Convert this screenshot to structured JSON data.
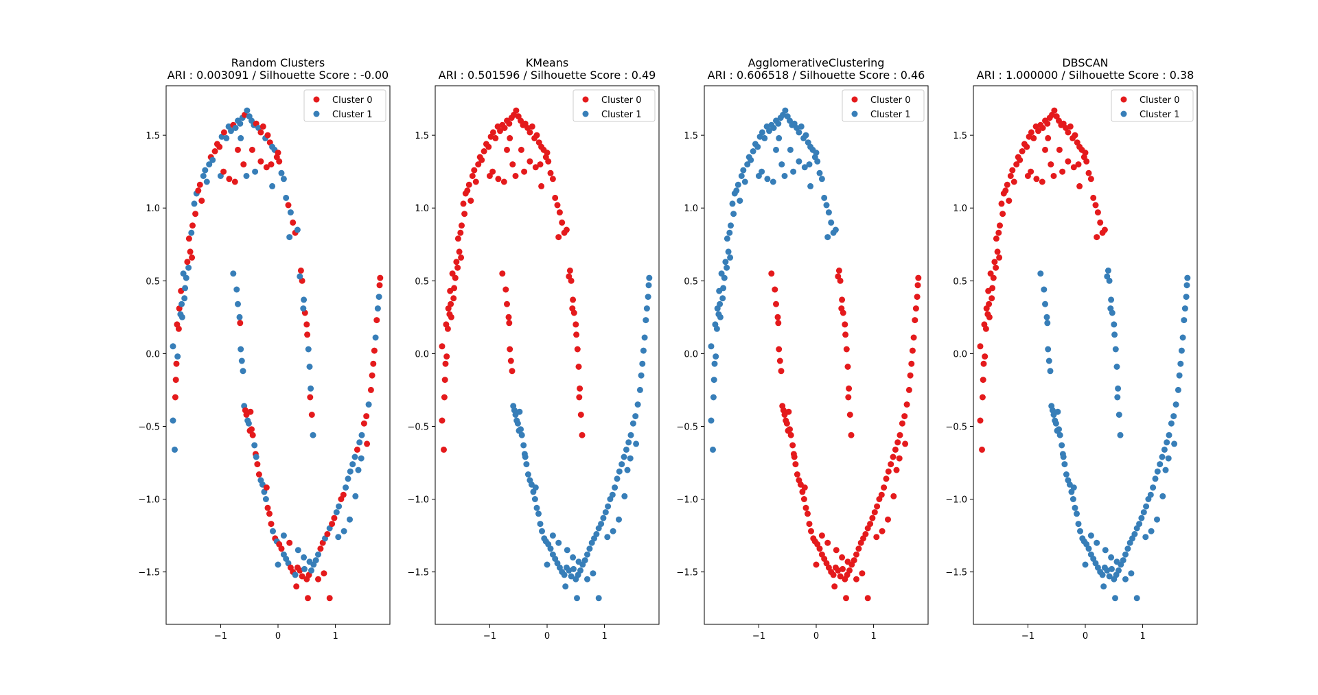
{
  "colors": {
    "cluster_0": "#e41a1c",
    "cluster_1": "#377eb8"
  },
  "chart_data": [
    {
      "type": "scatter",
      "title_line1": "Random Clusters",
      "title_line2": "ARI : 0.003091 / Silhouette Score : -0.00",
      "xlim": [
        -1.95,
        1.95
      ],
      "ylim": [
        -1.86,
        1.84
      ],
      "xticks": [
        -1,
        0,
        1
      ],
      "yticks": [
        -1.5,
        -1.0,
        -0.5,
        0.0,
        0.5,
        1.0,
        1.5
      ],
      "legend": {
        "position": "top-right",
        "entries": [
          "Cluster 0",
          "Cluster 1"
        ]
      },
      "color_rule": "random",
      "seed": 11
    },
    {
      "type": "scatter",
      "title_line1": "KMeans",
      "title_line2": "ARI : 0.501596 / Silhouette Score : 0.49",
      "xlim": [
        -1.95,
        1.95
      ],
      "ylim": [
        -1.86,
        1.84
      ],
      "xticks": [
        -1,
        0,
        1
      ],
      "yticks": [
        -1.5,
        -1.0,
        -0.5,
        0.0,
        0.5,
        1.0,
        1.5
      ],
      "legend": {
        "position": "top-right",
        "entries": [
          "Cluster 0",
          "Cluster 1"
        ]
      },
      "color_rule": "kmeans"
    },
    {
      "type": "scatter",
      "title_line1": "AgglomerativeClustering",
      "title_line2": "ARI : 0.606518 / Silhouette Score : 0.46",
      "xlim": [
        -1.95,
        1.95
      ],
      "ylim": [
        -1.86,
        1.84
      ],
      "xticks": [
        -1,
        0,
        1
      ],
      "yticks": [
        -1.5,
        -1.0,
        -0.5,
        0.0,
        0.5,
        1.0,
        1.5
      ],
      "legend": {
        "position": "top-right",
        "entries": [
          "Cluster 0",
          "Cluster 1"
        ]
      },
      "color_rule": "agglomerative"
    },
    {
      "type": "scatter",
      "title_line1": "DBSCAN",
      "title_line2": "ARI : 1.000000 / Silhouette Score : 0.38",
      "xlim": [
        -1.95,
        1.95
      ],
      "ylim": [
        -1.86,
        1.84
      ],
      "xticks": [
        -1,
        0,
        1
      ],
      "yticks": [
        -1.5,
        -1.0,
        -0.5,
        0.0,
        0.5,
        1.0,
        1.5
      ],
      "legend": {
        "position": "top-right",
        "entries": [
          "Cluster 0",
          "Cluster 1"
        ]
      },
      "color_rule": "dbscan"
    }
  ],
  "moon_points": [
    [
      -1.83,
      -0.46
    ],
    [
      -1.8,
      -0.66
    ],
    [
      -1.79,
      -0.3
    ],
    [
      -1.78,
      -0.18
    ],
    [
      -1.77,
      -0.07
    ],
    [
      -1.75,
      -0.02
    ],
    [
      -1.73,
      0.17
    ],
    [
      -1.72,
      0.31
    ],
    [
      -1.7,
      0.27
    ],
    [
      -1.69,
      0.43
    ],
    [
      -1.67,
      0.25
    ],
    [
      -1.65,
      0.55
    ],
    [
      -1.63,
      0.38
    ],
    [
      -1.6,
      0.52
    ],
    [
      -1.58,
      0.63
    ],
    [
      -1.55,
      0.79
    ],
    [
      -1.53,
      0.7
    ],
    [
      -1.51,
      0.83
    ],
    [
      -1.49,
      0.88
    ],
    [
      -1.46,
      1.03
    ],
    [
      -1.44,
      0.96
    ],
    [
      -1.42,
      1.1
    ],
    [
      -1.39,
      1.12
    ],
    [
      -1.36,
      1.16
    ],
    [
      -1.33,
      1.05
    ],
    [
      -1.3,
      1.22
    ],
    [
      -1.27,
      1.26
    ],
    [
      -1.24,
      1.18
    ],
    [
      -1.2,
      1.3
    ],
    [
      -1.17,
      1.35
    ],
    [
      -1.14,
      1.33
    ],
    [
      -1.1,
      1.39
    ],
    [
      -1.06,
      1.44
    ],
    [
      -1.02,
      1.42
    ],
    [
      -0.98,
      1.49
    ],
    [
      -0.94,
      1.52
    ],
    [
      -0.9,
      1.48
    ],
    [
      -0.86,
      1.56
    ],
    [
      -0.82,
      1.53
    ],
    [
      -0.78,
      1.57
    ],
    [
      -0.74,
      1.55
    ],
    [
      -0.7,
      1.6
    ],
    [
      -0.66,
      1.58
    ],
    [
      -0.62,
      1.62
    ],
    [
      -0.58,
      1.64
    ],
    [
      -0.54,
      1.67
    ],
    [
      -0.5,
      1.63
    ],
    [
      -0.46,
      1.6
    ],
    [
      -0.42,
      1.57
    ],
    [
      -0.38,
      1.58
    ],
    [
      -0.34,
      1.55
    ],
    [
      -0.3,
      1.52
    ],
    [
      -0.26,
      1.56
    ],
    [
      -0.22,
      1.48
    ],
    [
      -0.18,
      1.5
    ],
    [
      -0.14,
      1.45
    ],
    [
      -0.1,
      1.42
    ],
    [
      -0.06,
      1.4
    ],
    [
      -0.02,
      1.35
    ],
    [
      0.02,
      1.32
    ],
    [
      0.06,
      1.24
    ],
    [
      0.1,
      1.2
    ],
    [
      0.14,
      1.07
    ],
    [
      0.18,
      1.02
    ],
    [
      0.22,
      0.97
    ],
    [
      0.26,
      0.9
    ],
    [
      0.3,
      0.83
    ],
    [
      0.34,
      0.85
    ],
    [
      -0.85,
      1.2
    ],
    [
      -0.75,
      1.18
    ],
    [
      -0.6,
      1.3
    ],
    [
      -0.55,
      1.22
    ],
    [
      -0.4,
      1.25
    ],
    [
      -0.3,
      1.32
    ],
    [
      -0.2,
      1.28
    ],
    [
      -0.12,
      1.3
    ],
    [
      -0.1,
      1.15
    ],
    [
      0.0,
      1.38
    ],
    [
      0.2,
      0.8
    ],
    [
      -1.0,
      1.22
    ],
    [
      -0.95,
      1.25
    ],
    [
      -0.45,
      1.4
    ],
    [
      -0.65,
      1.48
    ],
    [
      -0.7,
      1.4
    ],
    [
      -1.83,
      0.05
    ],
    [
      -1.76,
      0.2
    ],
    [
      -1.68,
      0.34
    ],
    [
      -1.62,
      0.45
    ],
    [
      -1.56,
      0.59
    ],
    [
      -1.5,
      0.66
    ],
    [
      -0.78,
      0.55
    ],
    [
      -0.72,
      0.44
    ],
    [
      -0.7,
      0.34
    ],
    [
      -0.67,
      0.25
    ],
    [
      -0.66,
      0.21
    ],
    [
      -0.65,
      0.03
    ],
    [
      -0.63,
      -0.05
    ],
    [
      -0.61,
      -0.12
    ],
    [
      -0.59,
      -0.36
    ],
    [
      -0.57,
      -0.39
    ],
    [
      -0.55,
      -0.42
    ],
    [
      -0.53,
      -0.46
    ],
    [
      -0.51,
      -0.48
    ],
    [
      -0.49,
      -0.53
    ],
    [
      -0.46,
      -0.52
    ],
    [
      -0.44,
      -0.56
    ],
    [
      -0.41,
      -0.63
    ],
    [
      -0.39,
      -0.69
    ],
    [
      -0.36,
      -0.76
    ],
    [
      -0.33,
      -0.83
    ],
    [
      -0.3,
      -0.87
    ],
    [
      -0.27,
      -0.9
    ],
    [
      -0.24,
      -0.95
    ],
    [
      -0.21,
      -1.0
    ],
    [
      -0.18,
      -1.06
    ],
    [
      -0.15,
      -1.1
    ],
    [
      -0.12,
      -1.17
    ],
    [
      -0.09,
      -1.22
    ],
    [
      -0.05,
      -1.27
    ],
    [
      -0.02,
      -1.29
    ],
    [
      0.02,
      -1.31
    ],
    [
      0.06,
      -1.34
    ],
    [
      0.1,
      -1.38
    ],
    [
      0.14,
      -1.41
    ],
    [
      0.18,
      -1.44
    ],
    [
      0.22,
      -1.47
    ],
    [
      0.26,
      -1.5
    ],
    [
      0.3,
      -1.52
    ],
    [
      0.34,
      -1.47
    ],
    [
      0.38,
      -1.49
    ],
    [
      0.42,
      -1.53
    ],
    [
      0.46,
      -1.48
    ],
    [
      0.5,
      -1.55
    ],
    [
      0.54,
      -1.52
    ],
    [
      0.58,
      -1.49
    ],
    [
      0.62,
      -1.45
    ],
    [
      0.66,
      -1.42
    ],
    [
      0.7,
      -1.38
    ],
    [
      0.74,
      -1.34
    ],
    [
      0.78,
      -1.3
    ],
    [
      0.82,
      -1.27
    ],
    [
      0.86,
      -1.24
    ],
    [
      0.9,
      -1.2
    ],
    [
      0.94,
      -1.17
    ],
    [
      0.98,
      -1.13
    ],
    [
      1.02,
      -1.09
    ],
    [
      1.06,
      -1.05
    ],
    [
      1.1,
      -1.0
    ],
    [
      1.14,
      -0.97
    ],
    [
      1.18,
      -0.92
    ],
    [
      1.22,
      -0.86
    ],
    [
      1.26,
      -0.81
    ],
    [
      1.3,
      -0.76
    ],
    [
      1.34,
      -0.71
    ],
    [
      1.38,
      -0.66
    ],
    [
      1.42,
      -0.61
    ],
    [
      1.46,
      -0.56
    ],
    [
      1.5,
      -0.48
    ],
    [
      1.54,
      -0.43
    ],
    [
      1.58,
      -0.35
    ],
    [
      1.62,
      -0.25
    ],
    [
      1.64,
      -0.15
    ],
    [
      1.66,
      -0.07
    ],
    [
      1.68,
      0.02
    ],
    [
      1.7,
      0.11
    ],
    [
      1.72,
      0.23
    ],
    [
      1.74,
      0.31
    ],
    [
      1.76,
      0.39
    ],
    [
      1.77,
      0.47
    ],
    [
      1.78,
      0.52
    ],
    [
      0.0,
      -1.45
    ],
    [
      0.2,
      -1.3
    ],
    [
      0.35,
      -1.35
    ],
    [
      0.45,
      -1.4
    ],
    [
      0.55,
      -1.43
    ],
    [
      0.8,
      -1.51
    ],
    [
      0.9,
      -1.68
    ],
    [
      0.52,
      -1.68
    ],
    [
      0.32,
      -1.6
    ],
    [
      0.7,
      -1.55
    ],
    [
      0.1,
      -1.25
    ],
    [
      -0.2,
      -0.92
    ],
    [
      -0.38,
      -0.71
    ],
    [
      -0.48,
      -0.4
    ],
    [
      1.05,
      -1.26
    ],
    [
      1.15,
      -1.22
    ],
    [
      1.25,
      -1.14
    ],
    [
      1.35,
      -0.98
    ],
    [
      1.4,
      -0.8
    ],
    [
      1.45,
      -0.72
    ],
    [
      1.55,
      -0.62
    ],
    [
      0.4,
      0.57
    ],
    [
      0.42,
      0.5
    ],
    [
      0.45,
      0.37
    ],
    [
      0.47,
      0.28
    ],
    [
      0.5,
      0.2
    ],
    [
      0.53,
      0.03
    ],
    [
      0.55,
      -0.09
    ],
    [
      0.57,
      -0.24
    ],
    [
      0.59,
      -0.42
    ],
    [
      0.61,
      -0.56
    ],
    [
      0.38,
      0.53
    ],
    [
      0.44,
      0.31
    ],
    [
      0.51,
      0.13
    ],
    [
      0.56,
      -0.3
    ]
  ]
}
